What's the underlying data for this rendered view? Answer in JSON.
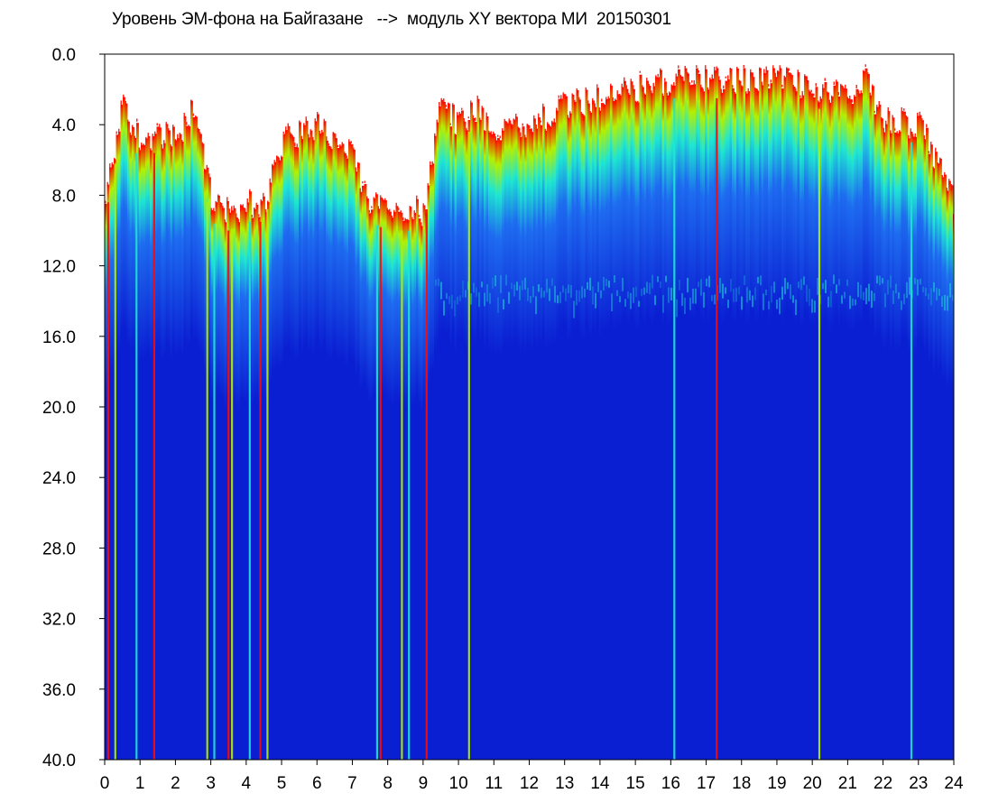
{
  "chart_data": {
    "type": "heatmap",
    "title": "Уровень ЭМ-фона на Байгазане   -->  модуль XY вектора МИ  20150301",
    "xlabel": "",
    "ylabel": "",
    "xlim": [
      0,
      24
    ],
    "ylim": [
      0.0,
      40.0
    ],
    "y_axis_inverted": true,
    "grid": false,
    "x_ticks": [
      "0",
      "1",
      "2",
      "3",
      "4",
      "5",
      "6",
      "7",
      "8",
      "9",
      "10",
      "11",
      "12",
      "13",
      "14",
      "15",
      "16",
      "17",
      "18",
      "19",
      "20",
      "21",
      "22",
      "23",
      "24"
    ],
    "y_ticks": [
      "0.0",
      "4.0",
      "8.0",
      "12.0",
      "16.0",
      "20.0",
      "24.0",
      "28.0",
      "32.0",
      "36.0",
      "40.0"
    ],
    "colors": {
      "low": "#0a1ed2",
      "low_mid": "#1e6cf0",
      "mid": "#1ee6d2",
      "mid_high": "#b4f000",
      "high": "#ff0a00",
      "empty": "#ffffff"
    },
    "upper_band_edge": [
      {
        "x": 0.0,
        "y": 8.5
      },
      {
        "x": 0.5,
        "y": 3.0
      },
      {
        "x": 1.0,
        "y": 5.0
      },
      {
        "x": 1.5,
        "y": 4.5
      },
      {
        "x": 2.0,
        "y": 5.0
      },
      {
        "x": 2.5,
        "y": 3.0
      },
      {
        "x": 3.0,
        "y": 8.5
      },
      {
        "x": 3.5,
        "y": 9.0
      },
      {
        "x": 4.0,
        "y": 8.5
      },
      {
        "x": 4.5,
        "y": 8.5
      },
      {
        "x": 5.0,
        "y": 5.0
      },
      {
        "x": 6.0,
        "y": 4.0
      },
      {
        "x": 7.0,
        "y": 6.0
      },
      {
        "x": 7.5,
        "y": 8.5
      },
      {
        "x": 8.0,
        "y": 9.0
      },
      {
        "x": 9.0,
        "y": 9.0
      },
      {
        "x": 9.5,
        "y": 3.0
      },
      {
        "x": 10.0,
        "y": 4.0
      },
      {
        "x": 10.5,
        "y": 3.0
      },
      {
        "x": 11.0,
        "y": 4.5
      },
      {
        "x": 12.0,
        "y": 4.0
      },
      {
        "x": 13.0,
        "y": 3.0
      },
      {
        "x": 14.0,
        "y": 2.5
      },
      {
        "x": 15.0,
        "y": 2.0
      },
      {
        "x": 16.0,
        "y": 1.5
      },
      {
        "x": 17.0,
        "y": 1.5
      },
      {
        "x": 18.0,
        "y": 1.5
      },
      {
        "x": 19.0,
        "y": 1.2
      },
      {
        "x": 20.0,
        "y": 2.0
      },
      {
        "x": 21.0,
        "y": 2.5
      },
      {
        "x": 21.5,
        "y": 1.5
      },
      {
        "x": 22.0,
        "y": 4.0
      },
      {
        "x": 23.0,
        "y": 4.0
      },
      {
        "x": 24.0,
        "y": 8.5
      }
    ],
    "spikes": [
      {
        "x": 0.1,
        "y": 40.0
      },
      {
        "x": 0.3,
        "y": 40.0
      },
      {
        "x": 0.9,
        "y": 40.0
      },
      {
        "x": 1.4,
        "y": 40.0
      },
      {
        "x": 2.9,
        "y": 40.0
      },
      {
        "x": 3.1,
        "y": 40.0
      },
      {
        "x": 3.5,
        "y": 40.0
      },
      {
        "x": 3.6,
        "y": 40.0
      },
      {
        "x": 4.1,
        "y": 40.0
      },
      {
        "x": 4.4,
        "y": 40.0
      },
      {
        "x": 4.6,
        "y": 40.0
      },
      {
        "x": 7.7,
        "y": 40.0
      },
      {
        "x": 7.8,
        "y": 40.0
      },
      {
        "x": 8.4,
        "y": 40.0
      },
      {
        "x": 8.6,
        "y": 40.0
      },
      {
        "x": 9.1,
        "y": 40.0
      },
      {
        "x": 10.3,
        "y": 40.0
      },
      {
        "x": 16.1,
        "y": 40.0
      },
      {
        "x": 17.3,
        "y": 40.0
      },
      {
        "x": 20.2,
        "y": 40.0
      },
      {
        "x": 22.8,
        "y": 40.0
      }
    ]
  }
}
